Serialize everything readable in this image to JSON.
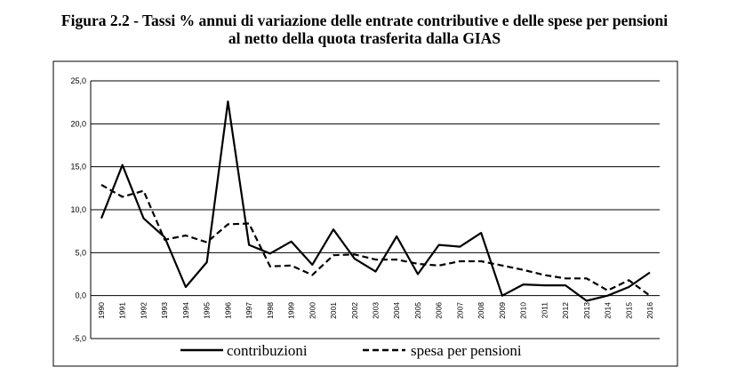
{
  "chart_data": {
    "type": "line",
    "title_line1": "Figura 2.2 - Tassi % annui di variazione delle entrate contributive e delle spese per pensioni",
    "title_line2": "al netto della quota trasferita dalla GIAS",
    "x": [
      "1990",
      "1991",
      "1992",
      "1993",
      "1994",
      "1995",
      "1996",
      "1997",
      "1998",
      "1999",
      "2000",
      "2001",
      "2002",
      "2003",
      "2004",
      "2005",
      "2006",
      "2007",
      "2008",
      "2009",
      "2010",
      "2011",
      "2012",
      "2013",
      "2014",
      "2015",
      "2016"
    ],
    "y_ticks": [
      "25,0",
      "20,0",
      "15,0",
      "10,0",
      "5,0",
      "0,0",
      "-5,0"
    ],
    "ylim": [
      -5,
      25
    ],
    "grid": true,
    "legend_position": "bottom",
    "series": [
      {
        "name": "contribuzioni",
        "style": "solid",
        "values": [
          9.0,
          15.2,
          9.0,
          6.8,
          1.0,
          3.9,
          22.6,
          5.9,
          4.9,
          6.3,
          3.6,
          7.7,
          4.3,
          2.8,
          6.9,
          2.5,
          5.9,
          5.7,
          7.3,
          0.0,
          1.3,
          1.2,
          1.2,
          -0.6,
          0.0,
          1.0,
          2.7
        ]
      },
      {
        "name": "spesa per pensioni",
        "style": "dashed",
        "values": [
          12.9,
          11.5,
          12.2,
          6.5,
          7.0,
          6.2,
          8.3,
          8.4,
          3.4,
          3.5,
          2.4,
          4.7,
          4.8,
          4.2,
          4.2,
          3.7,
          3.5,
          4.0,
          4.0,
          3.5,
          3.0,
          2.4,
          2.0,
          2.0,
          0.6,
          1.8,
          0.0
        ]
      }
    ]
  }
}
